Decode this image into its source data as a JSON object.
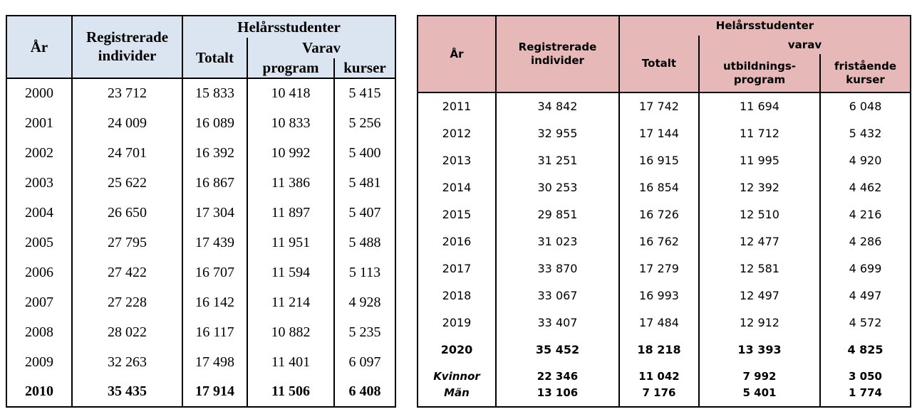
{
  "page": {
    "background": "#ffffff",
    "text_color": "#000000"
  },
  "table_left": {
    "name": "Helårsstudenter 2000–2010",
    "header_bg": "#dbe5f1",
    "header": {
      "year": "År",
      "registered": "Registrerade\nindivider",
      "fullyear_students": "Helårsstudenter",
      "total": "Totalt",
      "of_which": "Varav",
      "program": "program",
      "courses": "kurser"
    },
    "rows": [
      {
        "year": "2000",
        "values": [
          "23 712",
          "15 833",
          "10 418",
          "5 415"
        ]
      },
      {
        "year": "2001",
        "values": [
          "24 009",
          "16 089",
          "10 833",
          "5 256"
        ]
      },
      {
        "year": "2002",
        "values": [
          "24 701",
          "16 392",
          "10 992",
          "5 400"
        ]
      },
      {
        "year": "2003",
        "values": [
          "25 622",
          "16 867",
          "11 386",
          "5 481"
        ]
      },
      {
        "year": "2004",
        "values": [
          "26 650",
          "17 304",
          "11 897",
          "5 407"
        ]
      },
      {
        "year": "2005",
        "values": [
          "27 795",
          "17 439",
          "11 951",
          "5 488"
        ]
      },
      {
        "year": "2006",
        "values": [
          "27 422",
          "16 707",
          "11 594",
          "5 113"
        ]
      },
      {
        "year": "2007",
        "values": [
          "27 228",
          "16 142",
          "11 214",
          "4 928"
        ]
      },
      {
        "year": "2008",
        "values": [
          "28 022",
          "16 117",
          "10 882",
          "5 235"
        ]
      },
      {
        "year": "2009",
        "values": [
          "32 263",
          "17 498",
          "11 401",
          "6 097"
        ]
      },
      {
        "year": "2010",
        "values": [
          "35 435",
          "17 914",
          "11 506",
          "6 408"
        ],
        "bold": true
      }
    ]
  },
  "table_right": {
    "name": "Helårsstudenter 2011–2020",
    "header_bg": "#e6b8b7",
    "header": {
      "year": "År",
      "registered": "Registrerade\nindivider",
      "fullyear_students": "Helårsstudenter",
      "total": "Totalt",
      "of_which": "varav",
      "program": "utbildnings-\nprogram",
      "courses": "fristående\nkurser"
    },
    "rows": [
      {
        "year": "2011",
        "values": [
          "34 842",
          "17 742",
          "11 694",
          "6 048"
        ]
      },
      {
        "year": "2012",
        "values": [
          "32 955",
          "17 144",
          "11 712",
          "5 432"
        ]
      },
      {
        "year": "2013",
        "values": [
          "31 251",
          "16 915",
          "11 995",
          "4 920"
        ]
      },
      {
        "year": "2014",
        "values": [
          "30 253",
          "16 854",
          "12 392",
          "4 462"
        ]
      },
      {
        "year": "2015",
        "values": [
          "29 851",
          "16 726",
          "12 510",
          "4 216"
        ]
      },
      {
        "year": "2016",
        "values": [
          "31 023",
          "16 762",
          "12 477",
          "4 286"
        ]
      },
      {
        "year": "2017",
        "values": [
          "33 870",
          "17 279",
          "12 581",
          "4 699"
        ]
      },
      {
        "year": "2018",
        "values": [
          "33 067",
          "16 993",
          "12 497",
          "4 497"
        ]
      },
      {
        "year": "2019",
        "values": [
          "33 407",
          "17 484",
          "12 912",
          "4 572"
        ]
      },
      {
        "year": "2020",
        "values": [
          "35 452",
          "18 218",
          "13 393",
          "4 825"
        ],
        "bold": true
      }
    ],
    "gender_rows": [
      {
        "label": "Kvinnor",
        "values": [
          "22 346",
          "11 042",
          "7 992",
          "3 050"
        ]
      },
      {
        "label": "Män",
        "values": [
          "13 106",
          "7 176",
          "5 401",
          "1 774"
        ]
      }
    ]
  }
}
